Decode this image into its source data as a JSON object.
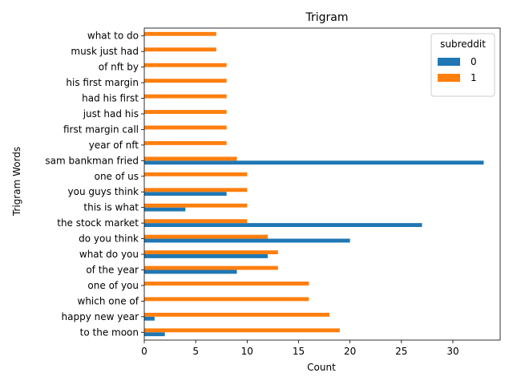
{
  "chart_data": {
    "type": "bar",
    "orientation": "horizontal",
    "title": "Trigram",
    "xlabel": "Count",
    "ylabel": "Trigram Words",
    "xlim": [
      0,
      34.6
    ],
    "xticks": [
      0,
      5,
      10,
      15,
      20,
      25,
      30
    ],
    "categories": [
      "to the moon",
      "happy new year",
      "which one of",
      "one of you",
      "of the year",
      "what do you",
      "do you think",
      "the stock market",
      "this is what",
      "you guys think",
      "one of us",
      "sam bankman fried",
      "year of nft",
      "first margin call",
      "just had his",
      "had his first",
      "his first margin",
      "of nft by",
      "musk just had",
      "what to do"
    ],
    "series": [
      {
        "name": "0",
        "color": "#1f77b4",
        "values": [
          2,
          1,
          0,
          0,
          9,
          12,
          20,
          27,
          4,
          8,
          0,
          33,
          0,
          0,
          0,
          0,
          0,
          0,
          0,
          0
        ]
      },
      {
        "name": "1",
        "color": "#ff7f0e",
        "values": [
          19,
          18,
          16,
          16,
          13,
          13,
          12,
          10,
          10,
          10,
          10,
          9,
          8,
          8,
          8,
          8,
          8,
          8,
          7,
          7
        ]
      }
    ],
    "legend": {
      "title": "subreddit",
      "placement": "top-right"
    },
    "grid": false
  }
}
